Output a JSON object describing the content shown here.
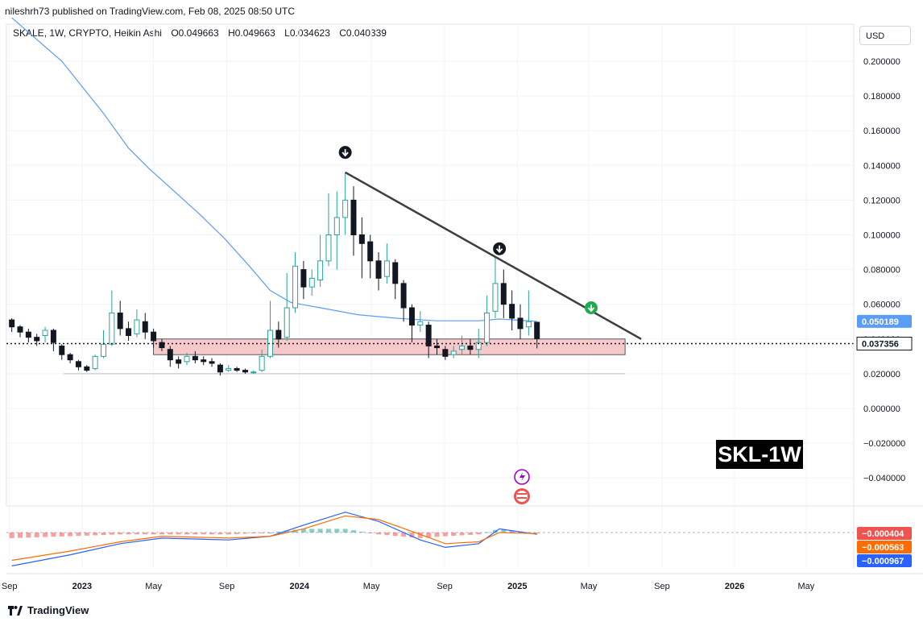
{
  "header": {
    "published": "nileshrh73 published on TradingView.com, Feb 08, 2025 08:50 UTC",
    "symbol_line": "SKALE, 1W, CRYPTO, Heikin Ashi",
    "ohlc": [
      {
        "label": "O",
        "value": "0.049663"
      },
      {
        "label": "H",
        "value": "0.049663"
      },
      {
        "label": "L",
        "value": "0.034623"
      },
      {
        "label": "C",
        "value": "0.040339"
      }
    ]
  },
  "currency": "USD",
  "watermark": "SKL-1W",
  "footer": {
    "brand": "TradingView"
  },
  "colors": {
    "up": "#26a69a",
    "down": "#131722",
    "ma": "#5b9cf6",
    "trendline": "#3d3d3d",
    "support_zone": "#f7c9cb",
    "macd": "#2962ff",
    "signal": "#ff6d00",
    "hist_up": "#26a69a",
    "hist_down": "#ef5350",
    "price_tag": "#131722",
    "ma_tag": "#5b9cf6",
    "green_marker": "#22ab4e"
  },
  "chart_data": [
    {
      "type": "candlestick",
      "title": "SKALE, 1W, CRYPTO, Heikin Ashi",
      "x_axis_ticks": [
        "Sep",
        "2023",
        "May",
        "Sep",
        "2024",
        "May",
        "Sep",
        "2025",
        "May",
        "Sep",
        "2026",
        "May"
      ],
      "y_axis_ticks": [
        "0.200000",
        "0.180000",
        "0.160000",
        "0.140000",
        "0.120000",
        "0.100000",
        "0.080000",
        "0.060000",
        "0.040000",
        "0.020000",
        "0.000000",
        "−0.020000",
        "−0.040000"
      ],
      "ylim": [
        -0.045,
        0.205
      ],
      "time_range": [
        "2022-09",
        "2026-07"
      ],
      "current_price": {
        "value": 0.037356,
        "label": "0.037356"
      },
      "ma_last": {
        "value": 0.050189,
        "label": "0.050189"
      },
      "support_zone": {
        "low": 0.031,
        "high": 0.04,
        "from": "2023-05",
        "to": "2025-07"
      },
      "support_line": {
        "value": 0.02,
        "from": "2022-12",
        "to": "2025-07"
      },
      "trendline": {
        "from": {
          "date": "2024-03-18",
          "value": 0.136
        },
        "to": {
          "date": "2025-07-28",
          "value": 0.04
        }
      },
      "markers": [
        {
          "type": "down-arrow",
          "date": "2024-03-18",
          "value": 0.1475,
          "color": "black"
        },
        {
          "type": "down-arrow",
          "date": "2024-12-02",
          "value": 0.092,
          "color": "black"
        },
        {
          "type": "down-arrow",
          "date": "2025-05-05",
          "value": 0.058,
          "color": "green"
        }
      ],
      "ma_series": [
        {
          "date": "2022-09-05",
          "value": 0.225
        },
        {
          "date": "2022-11-28",
          "value": 0.2
        },
        {
          "date": "2023-02-06",
          "value": 0.17
        },
        {
          "date": "2023-03-20",
          "value": 0.15
        },
        {
          "date": "2023-04-24",
          "value": 0.138
        },
        {
          "date": "2023-06-05",
          "value": 0.125
        },
        {
          "date": "2023-07-17",
          "value": 0.112
        },
        {
          "date": "2023-08-28",
          "value": 0.098
        },
        {
          "date": "2023-10-09",
          "value": 0.082
        },
        {
          "date": "2023-11-13",
          "value": 0.068
        },
        {
          "date": "2023-12-18",
          "value": 0.061
        },
        {
          "date": "2024-02-05",
          "value": 0.058
        },
        {
          "date": "2024-04-08",
          "value": 0.054
        },
        {
          "date": "2024-06-10",
          "value": 0.052
        },
        {
          "date": "2024-08-19",
          "value": 0.0505
        },
        {
          "date": "2024-10-28",
          "value": 0.0505
        },
        {
          "date": "2024-12-02",
          "value": 0.0515
        },
        {
          "date": "2025-02-03",
          "value": 0.050189
        }
      ],
      "candles": [
        {
          "date": "2022-09-05",
          "open": 0.051,
          "close": 0.047,
          "high": 0.052,
          "low": 0.044
        },
        {
          "date": "2022-09-19",
          "open": 0.047,
          "close": 0.044,
          "high": 0.048,
          "low": 0.041
        },
        {
          "date": "2022-10-03",
          "open": 0.044,
          "close": 0.041,
          "high": 0.046,
          "low": 0.038
        },
        {
          "date": "2022-10-17",
          "open": 0.041,
          "close": 0.039,
          "high": 0.043,
          "low": 0.036
        },
        {
          "date": "2022-10-31",
          "open": 0.042,
          "close": 0.045,
          "high": 0.047,
          "low": 0.038
        },
        {
          "date": "2022-11-14",
          "open": 0.045,
          "close": 0.038,
          "high": 0.046,
          "low": 0.033
        },
        {
          "date": "2022-11-28",
          "open": 0.036,
          "close": 0.031,
          "high": 0.037,
          "low": 0.028
        },
        {
          "date": "2022-12-12",
          "open": 0.031,
          "close": 0.028,
          "high": 0.032,
          "low": 0.026
        },
        {
          "date": "2022-12-26",
          "open": 0.027,
          "close": 0.024,
          "high": 0.028,
          "low": 0.022
        },
        {
          "date": "2023-01-09",
          "open": 0.024,
          "close": 0.022,
          "high": 0.025,
          "low": 0.021
        },
        {
          "date": "2023-01-23",
          "open": 0.023,
          "close": 0.03,
          "high": 0.031,
          "low": 0.022
        },
        {
          "date": "2023-02-06",
          "open": 0.03,
          "close": 0.037,
          "high": 0.045,
          "low": 0.029
        },
        {
          "date": "2023-02-20",
          "open": 0.037,
          "close": 0.055,
          "high": 0.068,
          "low": 0.036
        },
        {
          "date": "2023-03-06",
          "open": 0.055,
          "close": 0.046,
          "high": 0.062,
          "low": 0.042
        },
        {
          "date": "2023-03-20",
          "open": 0.046,
          "close": 0.042,
          "high": 0.05,
          "low": 0.039
        },
        {
          "date": "2023-04-03",
          "open": 0.043,
          "close": 0.051,
          "high": 0.057,
          "low": 0.041
        },
        {
          "date": "2023-04-17",
          "open": 0.05,
          "close": 0.044,
          "high": 0.055,
          "low": 0.04
        },
        {
          "date": "2023-05-01",
          "open": 0.044,
          "close": 0.039,
          "high": 0.046,
          "low": 0.035
        },
        {
          "date": "2023-05-15",
          "open": 0.038,
          "close": 0.035,
          "high": 0.04,
          "low": 0.033
        },
        {
          "date": "2023-05-29",
          "open": 0.034,
          "close": 0.028,
          "high": 0.036,
          "low": 0.024
        },
        {
          "date": "2023-06-12",
          "open": 0.028,
          "close": 0.026,
          "high": 0.03,
          "low": 0.023
        },
        {
          "date": "2023-06-26",
          "open": 0.027,
          "close": 0.03,
          "high": 0.032,
          "low": 0.025
        },
        {
          "date": "2023-07-10",
          "open": 0.03,
          "close": 0.028,
          "high": 0.033,
          "low": 0.026
        },
        {
          "date": "2023-07-24",
          "open": 0.028,
          "close": 0.027,
          "high": 0.03,
          "low": 0.025
        },
        {
          "date": "2023-08-07",
          "open": 0.027,
          "close": 0.026,
          "high": 0.029,
          "low": 0.024
        },
        {
          "date": "2023-08-21",
          "open": 0.025,
          "close": 0.021,
          "high": 0.026,
          "low": 0.019
        },
        {
          "date": "2023-09-04",
          "open": 0.022,
          "close": 0.023,
          "high": 0.025,
          "low": 0.021
        },
        {
          "date": "2023-09-18",
          "open": 0.023,
          "close": 0.022,
          "high": 0.024,
          "low": 0.021
        },
        {
          "date": "2023-10-02",
          "open": 0.022,
          "close": 0.021,
          "high": 0.023,
          "low": 0.02
        },
        {
          "date": "2023-10-16",
          "open": 0.021,
          "close": 0.021,
          "high": 0.022,
          "low": 0.02
        },
        {
          "date": "2023-10-30",
          "open": 0.022,
          "close": 0.03,
          "high": 0.034,
          "low": 0.021
        },
        {
          "date": "2023-11-13",
          "open": 0.03,
          "close": 0.045,
          "high": 0.062,
          "low": 0.029
        },
        {
          "date": "2023-11-27",
          "open": 0.045,
          "close": 0.04,
          "high": 0.05,
          "low": 0.035
        },
        {
          "date": "2023-12-11",
          "open": 0.041,
          "close": 0.058,
          "high": 0.078,
          "low": 0.039
        },
        {
          "date": "2023-12-25",
          "open": 0.058,
          "close": 0.082,
          "high": 0.09,
          "low": 0.055
        },
        {
          "date": "2024-01-08",
          "open": 0.08,
          "close": 0.07,
          "high": 0.085,
          "low": 0.063
        },
        {
          "date": "2024-01-22",
          "open": 0.07,
          "close": 0.075,
          "high": 0.08,
          "low": 0.065
        },
        {
          "date": "2024-02-05",
          "open": 0.074,
          "close": 0.085,
          "high": 0.1,
          "low": 0.07
        },
        {
          "date": "2024-02-19",
          "open": 0.085,
          "close": 0.1,
          "high": 0.124,
          "low": 0.082
        },
        {
          "date": "2024-03-04",
          "open": 0.1,
          "close": 0.11,
          "high": 0.125,
          "low": 0.08
        },
        {
          "date": "2024-03-18",
          "open": 0.11,
          "close": 0.12,
          "high": 0.136,
          "low": 0.1
        },
        {
          "date": "2024-04-01",
          "open": 0.12,
          "close": 0.1,
          "high": 0.128,
          "low": 0.088
        },
        {
          "date": "2024-04-15",
          "open": 0.1,
          "close": 0.095,
          "high": 0.11,
          "low": 0.075
        },
        {
          "date": "2024-04-29",
          "open": 0.096,
          "close": 0.085,
          "high": 0.1,
          "low": 0.075
        },
        {
          "date": "2024-05-13",
          "open": 0.085,
          "close": 0.075,
          "high": 0.09,
          "low": 0.068
        },
        {
          "date": "2024-05-27",
          "open": 0.076,
          "close": 0.085,
          "high": 0.095,
          "low": 0.072
        },
        {
          "date": "2024-06-10",
          "open": 0.084,
          "close": 0.072,
          "high": 0.086,
          "low": 0.063
        },
        {
          "date": "2024-06-24",
          "open": 0.072,
          "close": 0.058,
          "high": 0.074,
          "low": 0.05
        },
        {
          "date": "2024-07-08",
          "open": 0.058,
          "close": 0.048,
          "high": 0.06,
          "low": 0.038
        },
        {
          "date": "2024-07-22",
          "open": 0.048,
          "close": 0.05,
          "high": 0.056,
          "low": 0.044
        },
        {
          "date": "2024-08-05",
          "open": 0.048,
          "close": 0.036,
          "high": 0.05,
          "low": 0.029
        },
        {
          "date": "2024-08-19",
          "open": 0.036,
          "close": 0.035,
          "high": 0.04,
          "low": 0.031
        },
        {
          "date": "2024-09-02",
          "open": 0.034,
          "close": 0.03,
          "high": 0.036,
          "low": 0.028
        },
        {
          "date": "2024-09-16",
          "open": 0.031,
          "close": 0.033,
          "high": 0.036,
          "low": 0.029
        },
        {
          "date": "2024-09-30",
          "open": 0.034,
          "close": 0.036,
          "high": 0.042,
          "low": 0.031
        },
        {
          "date": "2024-10-14",
          "open": 0.036,
          "close": 0.034,
          "high": 0.04,
          "low": 0.031
        },
        {
          "date": "2024-10-28",
          "open": 0.034,
          "close": 0.038,
          "high": 0.046,
          "low": 0.029
        },
        {
          "date": "2024-11-11",
          "open": 0.038,
          "close": 0.055,
          "high": 0.065,
          "low": 0.036
        },
        {
          "date": "2024-11-25",
          "open": 0.056,
          "close": 0.072,
          "high": 0.087,
          "low": 0.052
        },
        {
          "date": "2024-12-09",
          "open": 0.072,
          "close": 0.06,
          "high": 0.08,
          "low": 0.052
        },
        {
          "date": "2024-12-23",
          "open": 0.06,
          "close": 0.052,
          "high": 0.068,
          "low": 0.045
        },
        {
          "date": "2025-01-06",
          "open": 0.052,
          "close": 0.046,
          "high": 0.06,
          "low": 0.04
        },
        {
          "date": "2025-01-20",
          "open": 0.047,
          "close": 0.05,
          "high": 0.068,
          "low": 0.042
        },
        {
          "date": "2025-02-03",
          "open": 0.049663,
          "close": 0.040339,
          "high": 0.049663,
          "low": 0.034623
        }
      ]
    },
    {
      "type": "macd",
      "x_axis_ticks": [
        "Sep",
        "2023",
        "May",
        "Sep",
        "2024",
        "May",
        "Sep",
        "2025",
        "May",
        "Sep",
        "2026",
        "May"
      ],
      "last_values": [
        {
          "name": "histogram",
          "label": "−0.000404",
          "color": "#ef5350"
        },
        {
          "name": "signal",
          "label": "−0.000563",
          "color": "#ff6d00"
        },
        {
          "name": "macd",
          "label": "−0.000967",
          "color": "#2962ff"
        }
      ],
      "ylim": [
        -0.02,
        0.015
      ],
      "macd": [
        {
          "date": "2022-09-05",
          "value": -0.018
        },
        {
          "date": "2022-12-12",
          "value": -0.012
        },
        {
          "date": "2023-03-06",
          "value": -0.006
        },
        {
          "date": "2023-05-15",
          "value": -0.003
        },
        {
          "date": "2023-09-04",
          "value": -0.004
        },
        {
          "date": "2023-11-13",
          "value": -0.002
        },
        {
          "date": "2024-01-08",
          "value": 0.004
        },
        {
          "date": "2024-03-18",
          "value": 0.011
        },
        {
          "date": "2024-05-13",
          "value": 0.006
        },
        {
          "date": "2024-07-22",
          "value": -0.004
        },
        {
          "date": "2024-09-02",
          "value": -0.008
        },
        {
          "date": "2024-10-28",
          "value": -0.006
        },
        {
          "date": "2024-12-02",
          "value": 0.002
        },
        {
          "date": "2025-02-03",
          "value": -0.000967
        }
      ],
      "signal": [
        {
          "date": "2022-09-05",
          "value": -0.015
        },
        {
          "date": "2022-12-12",
          "value": -0.01
        },
        {
          "date": "2023-03-06",
          "value": -0.005
        },
        {
          "date": "2023-05-15",
          "value": -0.002
        },
        {
          "date": "2023-09-04",
          "value": -0.003
        },
        {
          "date": "2023-11-13",
          "value": -0.002
        },
        {
          "date": "2024-01-08",
          "value": 0.002
        },
        {
          "date": "2024-03-18",
          "value": 0.009
        },
        {
          "date": "2024-05-13",
          "value": 0.007
        },
        {
          "date": "2024-07-22",
          "value": -0.001
        },
        {
          "date": "2024-09-02",
          "value": -0.006
        },
        {
          "date": "2024-10-28",
          "value": -0.005
        },
        {
          "date": "2024-12-02",
          "value": 0.0
        },
        {
          "date": "2025-02-03",
          "value": -0.000563
        }
      ]
    }
  ]
}
